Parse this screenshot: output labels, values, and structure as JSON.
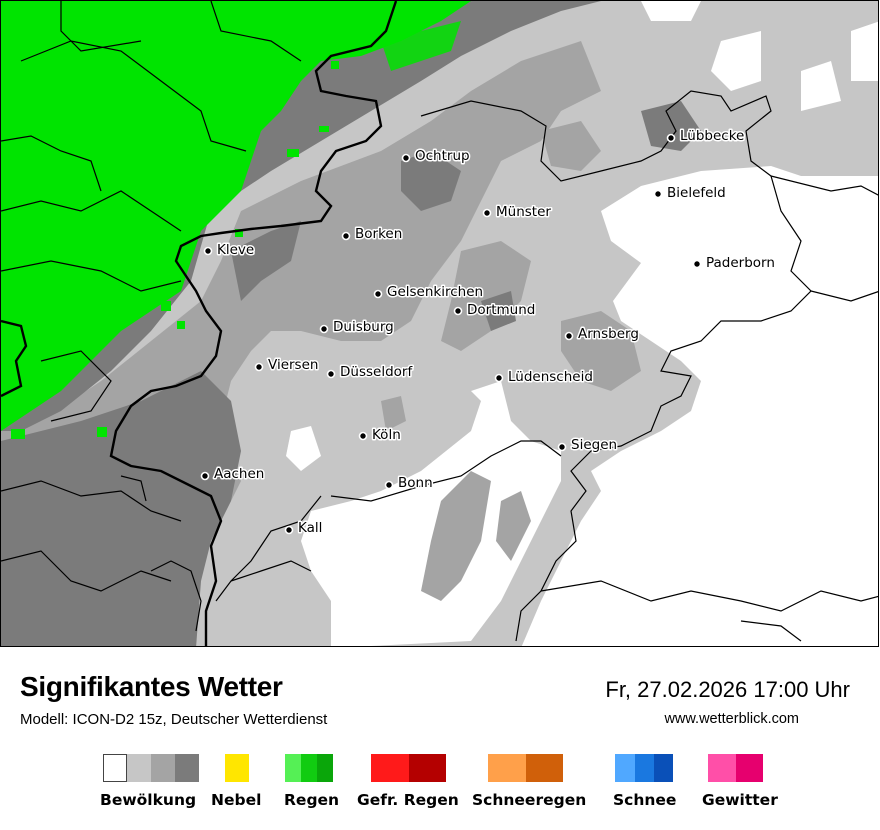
{
  "title": "Signifikantes Wetter",
  "subtitle": "Modell: ICON-D2 15z, Deutscher Wetterdienst",
  "datetime": "Fr, 27.02.2026 17:00 Uhr",
  "source": "www.wetterblick.com",
  "colors": {
    "cloud_1": "#ffffff",
    "cloud_2": "#c6c6c6",
    "cloud_3": "#a4a4a4",
    "cloud_4": "#7b7b7b",
    "rain_light": "#00e400",
    "border": "#000000"
  },
  "cities": [
    {
      "name": "Lübbecke"
    },
    {
      "name": "Ochtrup"
    },
    {
      "name": "Bielefeld"
    },
    {
      "name": "Münster"
    },
    {
      "name": "Kleve"
    },
    {
      "name": "Borken"
    },
    {
      "name": "Paderborn"
    },
    {
      "name": "Gelsenkirchen"
    },
    {
      "name": "Dortmund"
    },
    {
      "name": "Duisburg"
    },
    {
      "name": "Arnsberg"
    },
    {
      "name": "Viersen"
    },
    {
      "name": "Düsseldorf"
    },
    {
      "name": "Lüdenscheid"
    },
    {
      "name": "Köln"
    },
    {
      "name": "Siegen"
    },
    {
      "name": "Aachen"
    },
    {
      "name": "Bonn"
    },
    {
      "name": "Kall"
    }
  ],
  "legend": [
    {
      "label": "Bewölkung",
      "colors": [
        "#ffffff",
        "#c6c6c6",
        "#a4a4a4",
        "#7b7b7b"
      ]
    },
    {
      "label": "Nebel",
      "colors": [
        "#ffe600"
      ]
    },
    {
      "label": "Regen",
      "colors": [
        "#55f055",
        "#11cc11",
        "#0aa60a"
      ]
    },
    {
      "label": "Gefr. Regen",
      "colors": [
        "#ff1a1a",
        "#b40000"
      ]
    },
    {
      "label": "Schneeregen",
      "colors": [
        "#ffa04a",
        "#d0600a"
      ]
    },
    {
      "label": "Schnee",
      "colors": [
        "#50a8ff",
        "#1a78e0",
        "#0a50b8"
      ]
    },
    {
      "label": "Gewitter",
      "colors": [
        "#ff4fa8",
        "#e6006e"
      ]
    }
  ]
}
